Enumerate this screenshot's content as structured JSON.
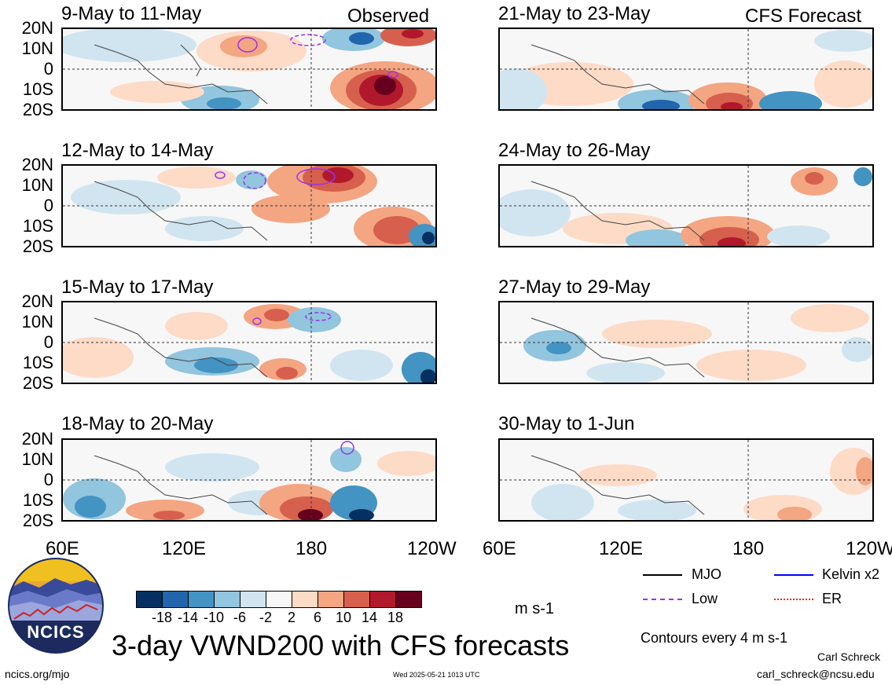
{
  "panels": [
    {
      "title": "9-May to 11-May",
      "tag": "Observed"
    },
    {
      "title": "21-May to 23-May",
      "tag": "CFS Forecast"
    },
    {
      "title": "12-May to 14-May",
      "tag": ""
    },
    {
      "title": "24-May to 26-May",
      "tag": ""
    },
    {
      "title": "15-May to 17-May",
      "tag": ""
    },
    {
      "title": "27-May to 29-May",
      "tag": ""
    },
    {
      "title": "18-May to 20-May",
      "tag": ""
    },
    {
      "title": "30-May to 1-Jun",
      "tag": ""
    }
  ],
  "lat_labels": [
    "20N",
    "10N",
    "0",
    "10S",
    "20S"
  ],
  "lon_labels": [
    "60E",
    "120E",
    "180",
    "120W"
  ],
  "lon_labels_right": [
    "60E",
    "120E",
    "180",
    "120W"
  ],
  "colorbar": {
    "colors": [
      "#053061",
      "#2166ac",
      "#4393c3",
      "#92c5de",
      "#d1e5f0",
      "#f7f7f7",
      "#fddbc7",
      "#f4a582",
      "#d6604d",
      "#b2182b",
      "#67001f"
    ],
    "ticks": [
      "-18",
      "-14",
      "-10",
      "-6",
      "-2",
      "2",
      "6",
      "10",
      "14",
      "18"
    ],
    "unit": "m s-1"
  },
  "legend": [
    {
      "label": "MJO",
      "color": "#000000"
    },
    {
      "label": "Kelvin x2",
      "color": "#0000ff"
    },
    {
      "label": "Low",
      "color": "#9933ee"
    },
    {
      "label": "ER",
      "color": "#ee2222"
    }
  ],
  "contours_note": "Contours every 4 m s-1",
  "main_title": "3-day VWND200 with CFS forecasts",
  "logo_text": "NCICS",
  "author": "Carl Schreck",
  "email": "carl_schreck@ncsu.edu",
  "url": "ncics.org/mjo",
  "timestamp": "Wed 2025-05-21 1013 UTC"
}
